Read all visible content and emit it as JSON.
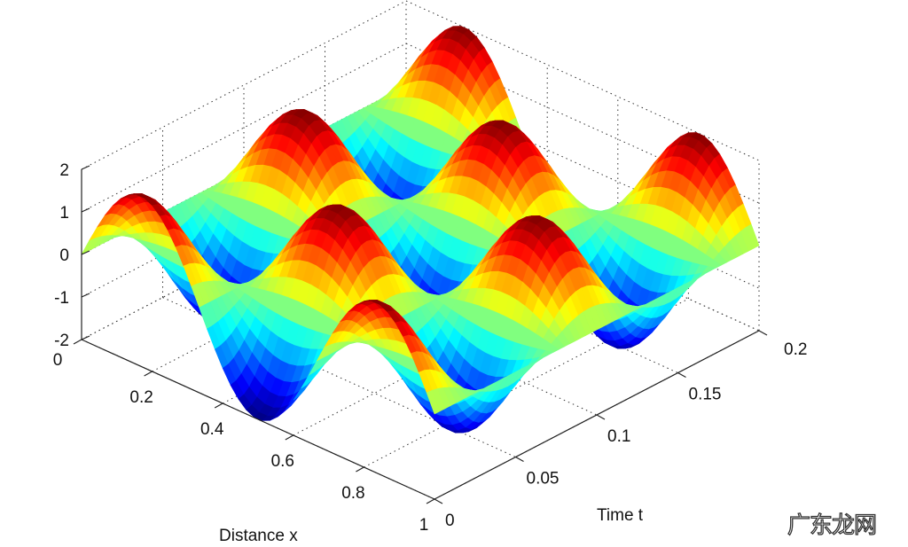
{
  "chart_data": {
    "type": "surface",
    "colormap": "jet",
    "grid": true,
    "x": {
      "label": "Distance x",
      "range": [
        0,
        1
      ],
      "ticks": [
        0,
        0.2,
        0.4,
        0.6,
        0.8,
        1
      ],
      "tick_labels": [
        "0",
        "0.2",
        "0.4",
        "0.6",
        "0.8",
        "1"
      ]
    },
    "t": {
      "label": "Time t",
      "range": [
        0,
        0.2
      ],
      "ticks": [
        0,
        0.05,
        0.1,
        0.15,
        0.2
      ],
      "tick_labels": [
        "0",
        "0.05",
        "0.1",
        "0.15",
        "0.2"
      ]
    },
    "z": {
      "label": "",
      "range": [
        -2,
        2
      ],
      "ticks": [
        -2,
        -1,
        0,
        1,
        2
      ],
      "tick_labels": [
        "-2",
        "-1",
        "0",
        "1",
        "2"
      ]
    },
    "surface_estimate": {
      "amplitude": 2,
      "x_half_waves": 3,
      "t_period": 0.1
    }
  },
  "watermark": "广东龙网"
}
